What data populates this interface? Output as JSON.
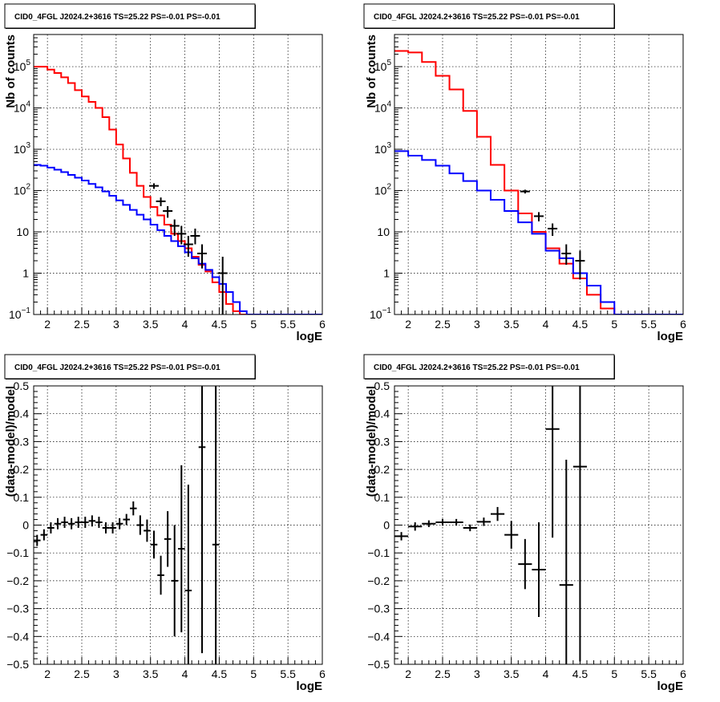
{
  "chart_data": [
    {
      "type": "line",
      "title": "CID0_4FGL J2024.2+3616 TS=25.22 PS=-0.01 PS=-0.01",
      "xlabel": "logE",
      "ylabel": "Nb of counts",
      "xlim": [
        1.8,
        6.0
      ],
      "ylim": [
        0.1,
        600000
      ],
      "yscale": "log",
      "grid": true,
      "x_ticks": [
        "2",
        "2.5",
        "3",
        "3.5",
        "4",
        "4.5",
        "5",
        "5.5",
        "6"
      ],
      "y_ticks": [
        "10^-1",
        "1",
        "10",
        "10^2",
        "10^3",
        "10^4",
        "10^5"
      ],
      "bin_edges": [
        1.8,
        1.9,
        2.0,
        2.1,
        2.2,
        2.3,
        2.4,
        2.5,
        2.6,
        2.7,
        2.8,
        2.9,
        3.0,
        3.1,
        3.2,
        3.3,
        3.4,
        3.5,
        3.6,
        3.7,
        3.8,
        3.9,
        4.0,
        4.1,
        4.2,
        4.3,
        4.4,
        4.5,
        4.6,
        4.7,
        4.8,
        4.9,
        5.0,
        5.1,
        5.2,
        5.3,
        5.4,
        5.5,
        5.6,
        5.7,
        5.8,
        5.9,
        6.0
      ],
      "series": [
        {
          "color": "#ff0000",
          "style": "step",
          "values": [
            100000,
            100000,
            85000,
            70000,
            55000,
            40000,
            27000,
            19000,
            14000,
            10000,
            6000,
            3000,
            1300,
            600,
            270,
            130,
            70,
            40,
            25,
            15,
            9,
            6,
            4,
            2.5,
            1.6,
            1.1,
            0.6,
            0.35,
            0.18,
            0.12,
            0.1,
            0.1,
            0.1,
            0.1,
            0.1,
            0.1,
            0.1,
            0.1,
            0.1,
            0.1,
            0.1,
            0.1
          ]
        },
        {
          "color": "#0000ff",
          "style": "step",
          "values": [
            420,
            400,
            360,
            320,
            280,
            240,
            205,
            175,
            145,
            120,
            95,
            75,
            58,
            45,
            34,
            26,
            20,
            15,
            11,
            8,
            6,
            4.5,
            3.2,
            2.3,
            1.7,
            1.2,
            0.8,
            0.55,
            0.35,
            0.2,
            0.12,
            0.1,
            0.1,
            0.1,
            0.1,
            0.1,
            0.1,
            0.1,
            0.1,
            0.1,
            0.1,
            0.1
          ]
        }
      ],
      "points": {
        "color": "#000000",
        "x": [
          3.55,
          3.65,
          3.75,
          3.85,
          3.95,
          4.05,
          4.15,
          4.25,
          4.55
        ],
        "y": [
          130,
          55,
          32,
          14,
          9,
          5,
          8,
          3,
          1
        ],
        "ylo": [
          110,
          42,
          22,
          8,
          5,
          2.5,
          5,
          1.3,
          0.1
        ],
        "yhi": [
          150,
          68,
          42,
          20,
          14,
          8,
          12,
          5,
          2.5
        ]
      }
    },
    {
      "type": "line",
      "title": "CID0_4FGL J2024.2+3616 TS=25.22 PS=-0.01 PS=-0.01",
      "xlabel": "logE",
      "ylabel": "Nb of counts",
      "xlim": [
        1.8,
        6.0
      ],
      "ylim": [
        0.1,
        600000
      ],
      "yscale": "log",
      "grid": true,
      "x_ticks": [
        "2",
        "2.5",
        "3",
        "3.5",
        "4",
        "4.5",
        "5",
        "5.5",
        "6"
      ],
      "y_ticks": [
        "10^-1",
        "1",
        "10",
        "10^2",
        "10^3",
        "10^4",
        "10^5"
      ],
      "bin_edges": [
        1.8,
        2.0,
        2.2,
        2.4,
        2.6,
        2.8,
        3.0,
        3.2,
        3.4,
        3.6,
        3.8,
        4.0,
        4.2,
        4.4,
        4.6,
        4.8,
        5.0,
        5.2,
        5.4,
        5.6,
        5.8,
        6.0
      ],
      "series": [
        {
          "color": "#ff0000",
          "style": "step",
          "values": [
            240000,
            220000,
            130000,
            60000,
            28000,
            8500,
            2000,
            420,
            100,
            28,
            10,
            4,
            1.7,
            0.75,
            0.3,
            0.14,
            0.1,
            0.1,
            0.1,
            0.1,
            0.1
          ]
        },
        {
          "color": "#0000ff",
          "style": "step",
          "values": [
            900,
            700,
            550,
            400,
            260,
            170,
            100,
            60,
            32,
            17,
            9,
            3.5,
            2.3,
            1,
            0.5,
            0.2,
            0.1,
            0.1,
            0.1,
            0.1,
            0.1
          ]
        }
      ],
      "points": {
        "color": "#000000",
        "x": [
          3.7,
          3.9,
          4.1,
          4.3,
          4.5
        ],
        "y": [
          95,
          24,
          12,
          3,
          2
        ],
        "ylo": [
          85,
          18,
          8,
          1.6,
          0.7
        ],
        "yhi": [
          105,
          30,
          16,
          5,
          3.5
        ]
      }
    },
    {
      "type": "scatter",
      "title": "CID0_4FGL J2024.2+3616 TS=25.22 PS=-0.01 PS=-0.01",
      "xlabel": "logE",
      "ylabel": "(data-model)/model",
      "xlim": [
        1.8,
        6.0
      ],
      "ylim": [
        -0.5,
        0.5
      ],
      "grid": true,
      "x_ticks": [
        "2",
        "2.5",
        "3",
        "3.5",
        "4",
        "4.5",
        "5",
        "5.5",
        "6"
      ],
      "y_ticks": [
        "-0.5",
        "-0.4",
        "-0.3",
        "-0.2",
        "-0.1",
        "0",
        "0.1",
        "0.2",
        "0.3",
        "0.4",
        "0.5"
      ],
      "points": {
        "color": "#000000",
        "x": [
          1.85,
          1.95,
          2.05,
          2.15,
          2.25,
          2.35,
          2.45,
          2.55,
          2.65,
          2.75,
          2.85,
          2.95,
          3.05,
          3.15,
          3.25,
          3.35,
          3.45,
          3.55,
          3.65,
          3.75,
          3.85,
          3.95,
          4.05,
          4.25,
          4.45
        ],
        "xerr": 0.05,
        "y": [
          -0.055,
          -0.035,
          -0.01,
          0.005,
          0.01,
          0.005,
          0.01,
          0.01,
          0.015,
          0.01,
          -0.01,
          -0.01,
          0.005,
          0.02,
          0.06,
          0.0,
          -0.02,
          -0.07,
          -0.18,
          -0.05,
          -0.2,
          -0.085,
          -0.235,
          0.28,
          -0.07
        ],
        "yerr": [
          0.02,
          0.02,
          0.02,
          0.02,
          0.02,
          0.02,
          0.02,
          0.02,
          0.02,
          0.02,
          0.02,
          0.02,
          0.02,
          0.02,
          0.025,
          0.035,
          0.04,
          0.05,
          0.07,
          0.1,
          0.2,
          0.3,
          0.38,
          0.74,
          0.6
        ]
      }
    },
    {
      "type": "scatter",
      "title": "CID0_4FGL J2024.2+3616 TS=25.22 PS=-0.01 PS=-0.01",
      "xlabel": "logE",
      "ylabel": "(data-model)/model",
      "xlim": [
        1.8,
        6.0
      ],
      "ylim": [
        -0.5,
        0.5
      ],
      "grid": true,
      "x_ticks": [
        "2",
        "2.5",
        "3",
        "3.5",
        "4",
        "4.5",
        "5",
        "5.5",
        "6"
      ],
      "y_ticks": [
        "-0.5",
        "-0.4",
        "-0.3",
        "-0.2",
        "-0.1",
        "0",
        "0.1",
        "0.2",
        "0.3",
        "0.4",
        "0.5"
      ],
      "points": {
        "color": "#000000",
        "x": [
          1.9,
          2.1,
          2.3,
          2.5,
          2.7,
          2.9,
          3.1,
          3.3,
          3.5,
          3.7,
          3.9,
          4.1,
          4.3,
          4.5
        ],
        "xerr": 0.1,
        "y": [
          -0.04,
          -0.005,
          0.005,
          0.01,
          0.01,
          -0.01,
          0.012,
          0.04,
          -0.035,
          -0.14,
          -0.16,
          0.345,
          -0.215,
          0.21
        ],
        "yerr": [
          0.015,
          0.015,
          0.012,
          0.012,
          0.012,
          0.012,
          0.015,
          0.025,
          0.05,
          0.09,
          0.17,
          0.39,
          0.45,
          0.7
        ]
      }
    }
  ]
}
